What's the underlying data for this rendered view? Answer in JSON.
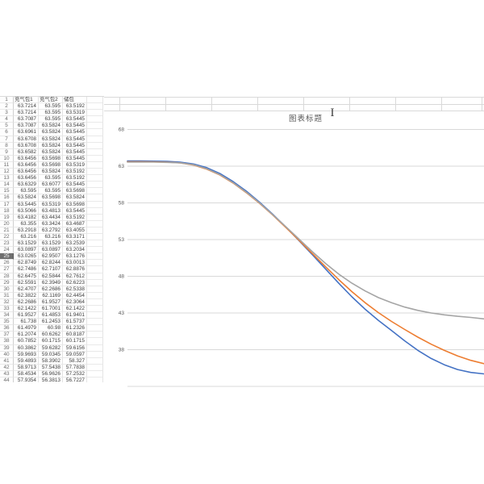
{
  "table": {
    "row1_number": "1",
    "headers": [
      "充气包1",
      "充气包2",
      "储包"
    ],
    "selected_row": 25,
    "rows": [
      [
        "63.7214",
        "63.595",
        "63.5192"
      ],
      [
        "63.7214",
        "63.595",
        "63.5319"
      ],
      [
        "63.7087",
        "63.595",
        "63.5445"
      ],
      [
        "63.7087",
        "63.5824",
        "63.5445"
      ],
      [
        "63.6961",
        "63.5824",
        "63.5445"
      ],
      [
        "63.6708",
        "63.5824",
        "63.5445"
      ],
      [
        "63.6708",
        "63.5824",
        "63.5445"
      ],
      [
        "63.6582",
        "63.5824",
        "63.5445"
      ],
      [
        "63.6456",
        "63.5698",
        "63.5445"
      ],
      [
        "63.6456",
        "63.5698",
        "63.5319"
      ],
      [
        "63.6456",
        "63.5824",
        "63.5192"
      ],
      [
        "63.6456",
        "63.595",
        "63.5192"
      ],
      [
        "63.6329",
        "63.6077",
        "63.5445"
      ],
      [
        "63.595",
        "63.595",
        "63.5698"
      ],
      [
        "63.5824",
        "63.5698",
        "63.5824"
      ],
      [
        "63.5445",
        "63.5319",
        "63.5698"
      ],
      [
        "63.5066",
        "63.4813",
        "63.5445"
      ],
      [
        "63.4182",
        "63.4434",
        "63.5192"
      ],
      [
        "63.355",
        "63.3424",
        "63.4687"
      ],
      [
        "63.2918",
        "63.2792",
        "63.4055"
      ],
      [
        "63.216",
        "63.216",
        "63.3171"
      ],
      [
        "63.1529",
        "63.1529",
        "63.2539"
      ],
      [
        "63.0897",
        "63.0897",
        "63.2034"
      ],
      [
        "63.0265",
        "62.9507",
        "63.1276"
      ],
      [
        "62.8749",
        "62.8244",
        "63.0013"
      ],
      [
        "62.7486",
        "62.7107",
        "62.8876"
      ],
      [
        "62.6475",
        "62.5844",
        "62.7612"
      ],
      [
        "62.5591",
        "62.3949",
        "62.6223"
      ],
      [
        "62.4707",
        "62.2686",
        "62.5338"
      ],
      [
        "62.3822",
        "62.1169",
        "62.4454"
      ],
      [
        "62.2686",
        "61.9527",
        "62.3064"
      ],
      [
        "62.1422",
        "61.7001",
        "62.1422"
      ],
      [
        "61.9527",
        "61.4853",
        "61.9401"
      ],
      [
        "61.738",
        "61.2453",
        "61.5737"
      ],
      [
        "61.4979",
        "60.98",
        "61.2326"
      ],
      [
        "61.2074",
        "60.6262",
        "60.8187"
      ],
      [
        "60.7852",
        "60.1715",
        "60.1715"
      ],
      [
        "60.3862",
        "59.6282",
        "59.6156"
      ],
      [
        "59.9693",
        "59.0345",
        "59.0597"
      ],
      [
        "59.4893",
        "58.3902",
        "58.327"
      ],
      [
        "58.9713",
        "57.5438",
        "57.7838"
      ],
      [
        "58.4534",
        "56.9626",
        "57.2532"
      ],
      [
        "57.9354",
        "56.3813",
        "56.7227"
      ]
    ]
  },
  "chart_data": {
    "type": "line",
    "title": "图表标题",
    "xlabel": "",
    "ylabel": "",
    "y_ticks": [
      68,
      63,
      58,
      53,
      48,
      43,
      38
    ],
    "ylim": [
      33,
      68
    ],
    "grid": "horizontal",
    "legend": "none",
    "gridline_color": "#d9d9d9",
    "title_color": "#595959",
    "series": [
      {
        "name": "充气包1",
        "color": "#4472C4",
        "values": [
          63.7,
          63.7,
          63.68,
          63.65,
          63.55,
          63.3,
          62.8,
          62.0,
          60.9,
          59.6,
          58.1,
          56.45,
          54.7,
          52.85,
          50.95,
          49.0,
          47.05,
          45.2,
          43.5,
          42.0,
          40.6,
          39.2,
          37.9,
          36.8,
          35.95,
          35.3,
          34.9,
          34.7
        ]
      },
      {
        "name": "充气包2",
        "color": "#ED7D31",
        "values": [
          63.6,
          63.6,
          63.58,
          63.55,
          63.45,
          63.15,
          62.6,
          61.8,
          60.7,
          59.4,
          57.95,
          56.35,
          54.65,
          52.9,
          51.1,
          49.3,
          47.55,
          45.9,
          44.4,
          43.05,
          41.85,
          40.75,
          39.7,
          38.75,
          37.9,
          37.15,
          36.55,
          36.1
        ]
      },
      {
        "name": "储包",
        "color": "#A5A5A5",
        "values": [
          63.55,
          63.55,
          63.55,
          63.52,
          63.45,
          63.2,
          62.65,
          61.85,
          60.75,
          59.45,
          58.0,
          56.4,
          54.75,
          53.05,
          51.35,
          49.75,
          48.3,
          47.05,
          46.0,
          45.1,
          44.4,
          43.8,
          43.35,
          43.0,
          42.75,
          42.55,
          42.4,
          42.2
        ]
      }
    ]
  },
  "cursor": {
    "glyph": "I",
    "type": "text-ibeam"
  }
}
